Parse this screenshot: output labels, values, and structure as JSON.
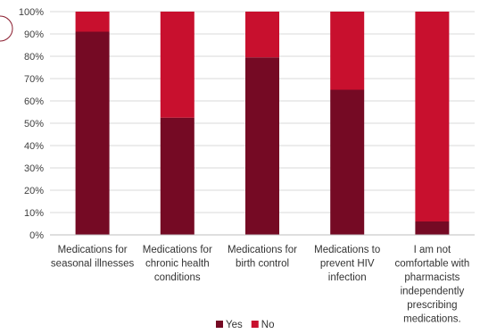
{
  "chart_data": {
    "type": "bar",
    "stacked": true,
    "categories": [
      [
        "Medications for",
        "seasonal illnesses"
      ],
      [
        "Medications for",
        "chronic health",
        "conditions"
      ],
      [
        "Medications for",
        "birth control"
      ],
      [
        "Medications to",
        "prevent HIV",
        "infection"
      ],
      [
        "I am not",
        "comfortable with",
        "pharmacists",
        "independently",
        "prescribing",
        "medications."
      ]
    ],
    "series": [
      {
        "name": "Yes",
        "color": "#750A24",
        "values": [
          91,
          52.5,
          79.5,
          65,
          6
        ]
      },
      {
        "name": "No",
        "color": "#C8102E",
        "values": [
          9,
          47.5,
          20.5,
          35,
          94
        ]
      }
    ],
    "ylim": [
      0,
      100
    ],
    "yticks": [
      "0%",
      "10%",
      "20%",
      "30%",
      "40%",
      "50%",
      "60%",
      "70%",
      "80%",
      "90%",
      "100%"
    ],
    "grid": true,
    "legend_position": "bottom"
  }
}
